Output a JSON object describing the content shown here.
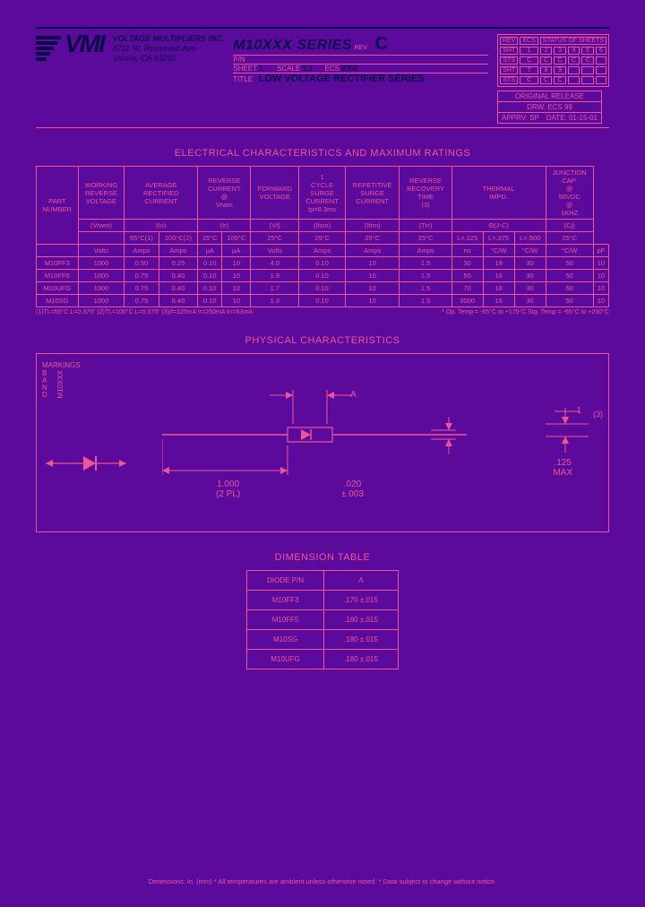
{
  "company": {
    "name": "VOLTAGE MULTIPLIERS INC.",
    "addr1": "8711 W. Roosevelt Ave.",
    "addr2": "Visalia, CA 93291"
  },
  "header": {
    "series": "M10XXX SERIES",
    "rev_label": "REV",
    "rev": "C",
    "pn_label": "P/N",
    "sheet_label": "SHEET",
    "sheet": "1",
    "scale_label": "SCALE",
    "scale": "1:1",
    "ecs_label": "ECS",
    "ecs": "8358",
    "title_label": "TITLE",
    "subtitle": "LOW VOLTAGE RECTIFIER SERIES"
  },
  "rev_hdr": [
    "REV",
    "ECS",
    "STATUS",
    "OF",
    "SHEETS"
  ],
  "rev_rows": [
    [
      "SHT",
      "1",
      "2",
      "3",
      "4",
      "5",
      "6"
    ],
    [
      "STS",
      "C",
      "C",
      "C",
      "C",
      "C",
      ""
    ],
    [
      "SHT",
      "7",
      "8",
      "9",
      "",
      "",
      ""
    ],
    [
      "STS",
      "C",
      "C",
      "C",
      "",
      "",
      ""
    ]
  ],
  "orig": {
    "title": "ORIGINAL RELEASE",
    "drw": "DRW: ECS  99",
    "appr": "APPRV: SP",
    "date": "DATE: 01-15-01"
  },
  "sec_elec": "ELECTRICAL CHARACTERISTICS AND MAXIMUM RATINGS",
  "elec": {
    "top_headers": [
      "PART NUMBER",
      "WORKING REVERSE VOLTAGE",
      "AVERAGE RECTIFIED CURRENT",
      "REVERSE CURRENT @ Vrwm",
      "FORWARD VOLTAGE",
      "1 CYCLE SURGE CURRENT tp=8.3ms",
      "REPETITIVE SURGE CURRENT",
      "REVERSE RECOVERY TIME (3)",
      "THERMAL IMPD.",
      "JUNCTION CAP. @ 50VDC @ 1KHZ"
    ],
    "sym_row": [
      "(Vrwm)",
      "(Io)",
      "(Ir)",
      "(Vf)",
      "(Ifsm)",
      "(Ifrm)",
      "(Trr)",
      "Θ(J-C)",
      "(Cj)"
    ],
    "cond_row": [
      "",
      "55°C(1)",
      "100°C(2)",
      "25°C",
      "100°C",
      "25°C",
      "25°C",
      "25°C",
      "25°C",
      "L=.125",
      "L=.375",
      "L=.500",
      "25°C"
    ],
    "unit_row": [
      "",
      "Volts",
      "Amps",
      "Amps",
      "µA",
      "µA",
      "Volts",
      "Amps",
      "Amps",
      "Amps",
      "ns",
      "°C/W",
      "°C/W",
      "°C/W",
      "pF"
    ],
    "rows": [
      [
        "M10FF3",
        "1000",
        "0.50",
        "0.25",
        "0.10",
        "10",
        "4.0",
        "0.10",
        "10",
        "1.5",
        "30",
        "18",
        "30",
        "50",
        "10"
      ],
      [
        "M10FF5",
        "1000",
        "0.75",
        "0.40",
        "0.10",
        "10",
        "1.9",
        "0.10",
        "10",
        "1.5",
        "50",
        "18",
        "30",
        "50",
        "10"
      ],
      [
        "M10UFG",
        "1000",
        "0.75",
        "0.40",
        "0.10",
        "10",
        "1.7",
        "0.10",
        "10",
        "1.5",
        "70",
        "18",
        "30",
        "50",
        "10"
      ],
      [
        "M10SG",
        "1000",
        "0.75",
        "0.40",
        "0.10",
        "10",
        "1.3",
        "0.10",
        "10",
        "1.5",
        "3000",
        "18",
        "30",
        "50",
        "10"
      ]
    ],
    "note_left": "(1)TL=55°C L=0.375\" (2)TL=100°C L=0.375\" (3)If=125mA Ir=250mA Irr=63mA",
    "note_right": "* Op. Temp = -65°C to +175°C Stg. Temp = -65°C to +200°C"
  },
  "sec_phys": "PHYSICAL CHARACTERISTICS",
  "phys": {
    "markings": "MARKINGS",
    "band": "B\nA\nN\nD",
    "m10xxx": "M10XXX",
    "a": "A",
    "len": "1.000",
    "len2": "(2 PL)",
    "tol": ".020",
    "tol2": "±.003",
    "dia": ".125",
    "dia2": "MAX",
    "one": "1",
    "three": "(3)"
  },
  "sec_dim": "DIMENSION TABLE",
  "dim": {
    "hdr": [
      "DIODE P/N",
      "A"
    ],
    "rows": [
      [
        "M10FF3",
        ".170 ±.015"
      ],
      [
        "M10FF5",
        ".180 ±.015"
      ],
      [
        "M10SG",
        ".180 ±.015"
      ],
      [
        "M10UFG",
        ".180 ±.015"
      ]
    ]
  },
  "bottom": "Dimensions: in. (mm) * All temperatures are ambient unless otherwise noted. * Data subject to change without notice."
}
